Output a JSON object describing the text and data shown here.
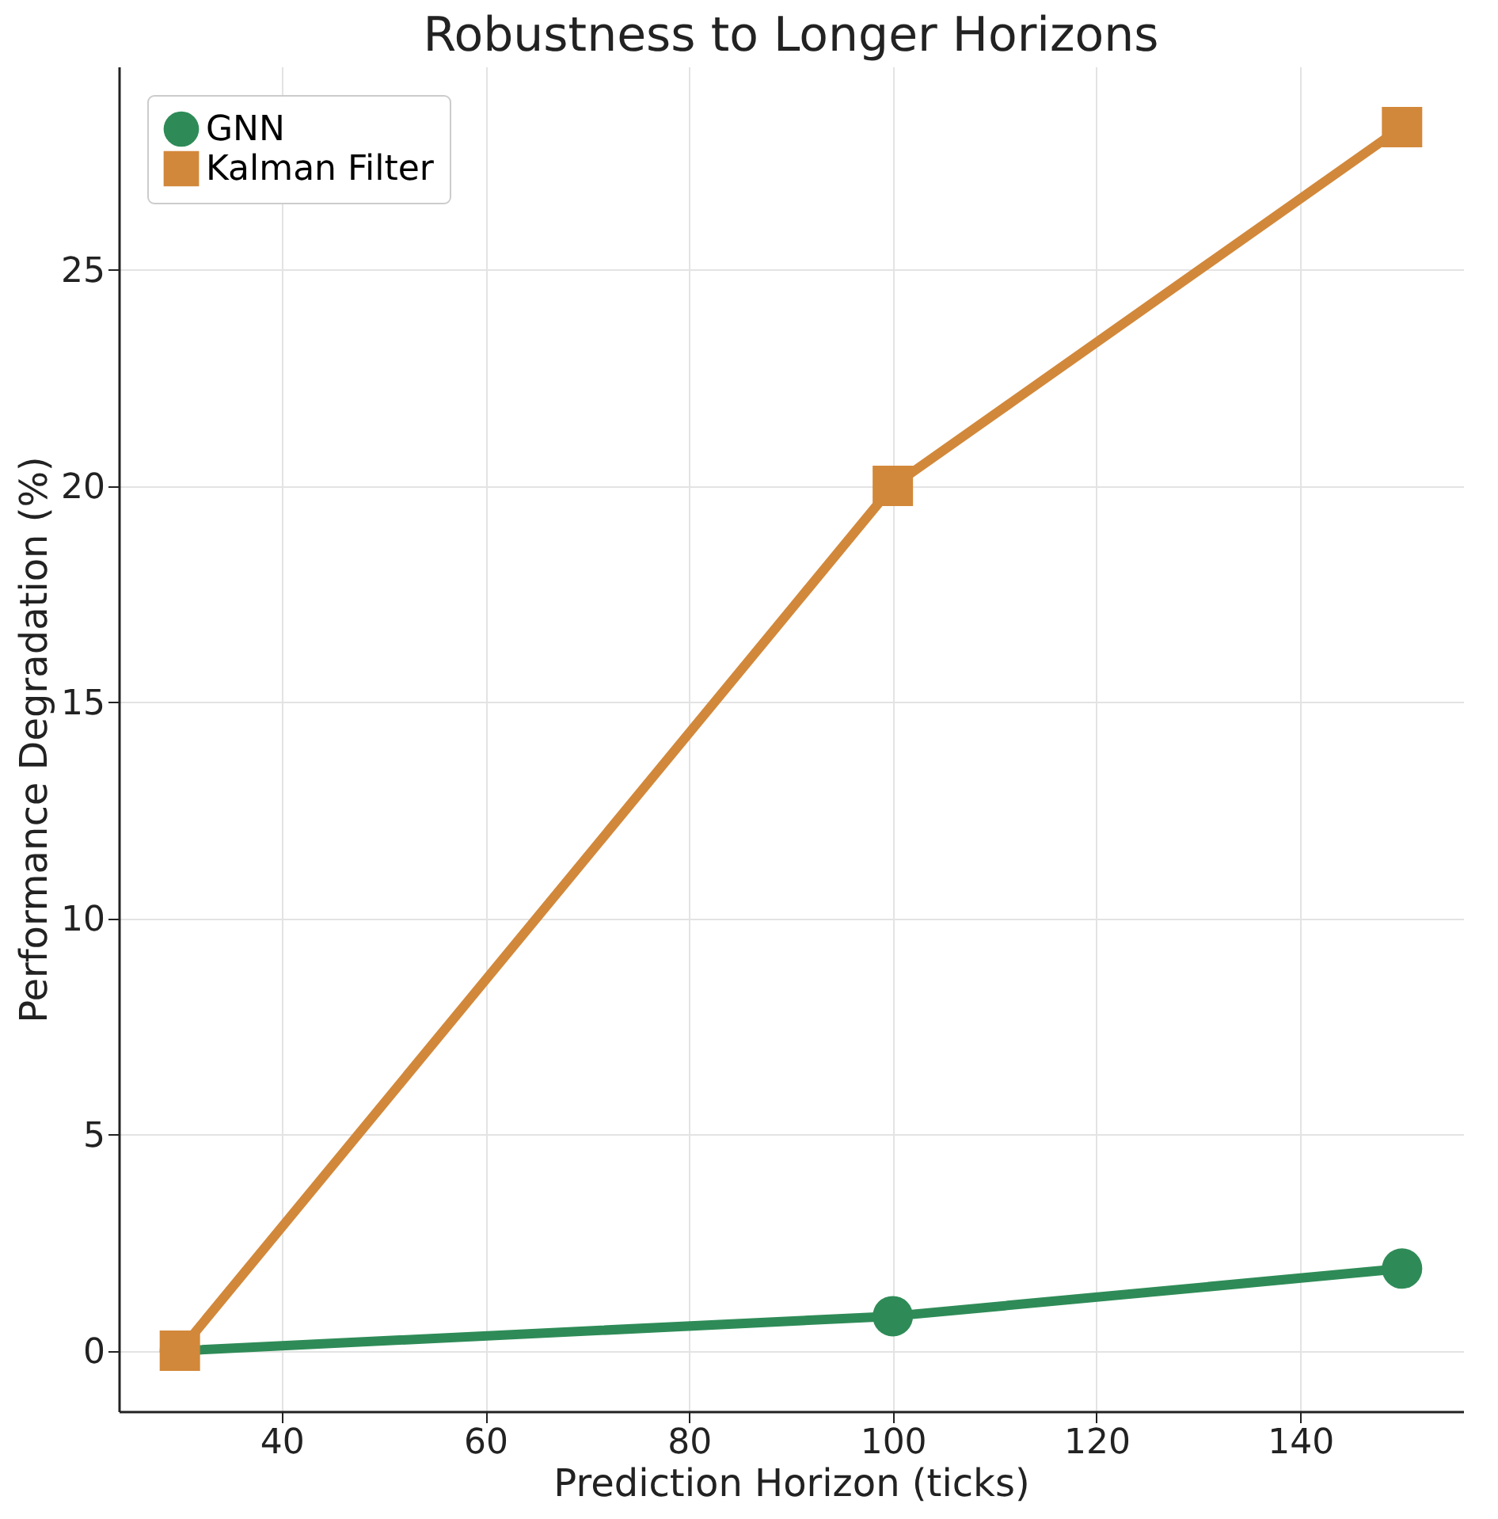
{
  "chart_data": {
    "type": "line",
    "title": "Robustness to Longer Horizons",
    "xlabel": "Prediction Horizon (ticks)",
    "ylabel": "Performance Degradation (%)",
    "x": [
      30,
      100,
      150
    ],
    "series": [
      {
        "name": "GNN",
        "color": "#2e8b57",
        "marker": "circle",
        "values": [
          0,
          0.8,
          1.9
        ]
      },
      {
        "name": "Kalman Filter",
        "color": "#d2883a",
        "marker": "square",
        "values": [
          0,
          20,
          28.3
        ]
      }
    ],
    "xlim": [
      24,
      156
    ],
    "xticks": [
      40,
      60,
      80,
      100,
      120,
      140
    ],
    "ylim": [
      -1.4,
      29.7
    ],
    "yticks": [
      0,
      5,
      10,
      15,
      20,
      25
    ],
    "grid": true,
    "legend": "top left",
    "line_style": "solid"
  }
}
